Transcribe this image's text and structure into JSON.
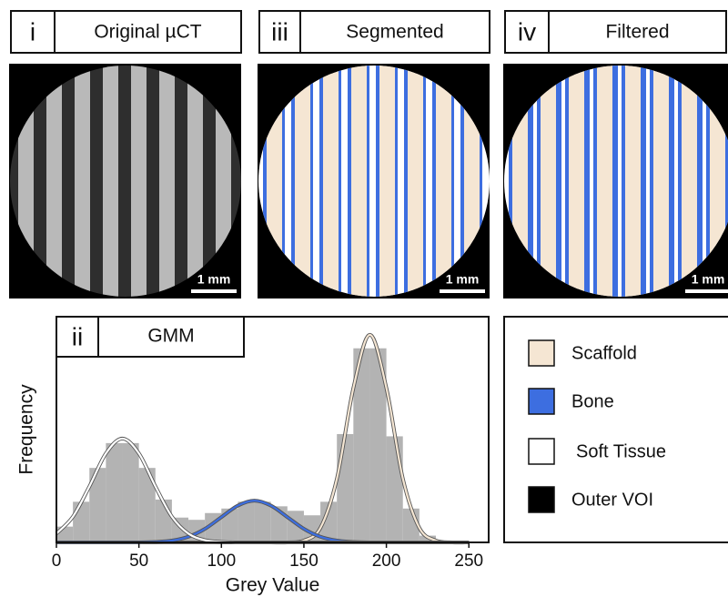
{
  "panels": [
    {
      "label": "i",
      "title": "Original µCT",
      "scale_bar": "1 mm"
    },
    {
      "label": "iii",
      "title": "Segmented",
      "scale_bar": "1 mm"
    },
    {
      "label": "iv",
      "title": "Filtered",
      "scale_bar": "1 mm"
    }
  ],
  "chart_data": {
    "type": "histogram",
    "panel_label": "ii",
    "title": "GMM",
    "x_label": "Grey Value",
    "y_label": "Frequency",
    "bins": [
      0,
      10,
      20,
      30,
      40,
      50,
      60,
      70,
      80,
      90,
      100,
      110,
      120,
      130,
      140,
      150,
      160,
      170,
      180,
      190,
      200,
      210,
      220,
      230,
      240,
      250
    ],
    "counts": [
      7,
      18,
      33,
      44,
      44,
      33,
      19,
      11,
      10,
      13,
      15,
      18,
      18,
      16,
      14,
      12,
      18,
      48,
      86,
      86,
      47,
      15,
      3,
      0,
      0
    ],
    "color": "#b3b3b3",
    "xlim": [
      0,
      262
    ],
    "ylim": [
      0,
      100
    ],
    "xticks": [
      0,
      50,
      100,
      150,
      200,
      250
    ],
    "x": [
      0,
      10,
      20,
      30,
      40,
      50,
      60,
      70,
      80,
      90,
      100,
      110,
      120,
      130,
      140,
      150,
      160,
      170,
      180,
      190,
      200,
      210,
      220,
      230,
      240,
      250
    ],
    "series": [
      {
        "name": "Scaffold",
        "color": "#f5e6d3",
        "values": [
          0,
          0,
          0,
          0,
          0,
          0,
          0,
          0,
          0,
          0,
          0,
          0,
          0,
          0,
          0,
          0.8,
          6.4,
          28.2,
          68.4,
          92,
          68.4,
          28.2,
          6.4,
          0.8,
          0,
          0
        ]
      },
      {
        "name": "Bone",
        "color": "#3d6ee0",
        "values": [
          0,
          0,
          0,
          0,
          0,
          0,
          0.2,
          0.8,
          2.5,
          6.0,
          11.2,
          16.3,
          18.5,
          16.3,
          11.2,
          6.0,
          2.5,
          0.8,
          0.2,
          0,
          0,
          0,
          0,
          0,
          0,
          0
        ]
      },
      {
        "name": "Soft Tissue",
        "color": "#ffffff",
        "values": [
          3.9,
          11.4,
          24.8,
          39.4,
          46,
          39.4,
          24.8,
          11.4,
          3.9,
          1.0,
          0.2,
          0,
          0,
          0,
          0,
          0,
          0,
          0,
          0,
          0,
          0,
          0,
          0,
          0,
          0,
          0
        ]
      }
    ],
    "legend_extra": {
      "name": "Outer VOI",
      "color": "#000000"
    }
  }
}
